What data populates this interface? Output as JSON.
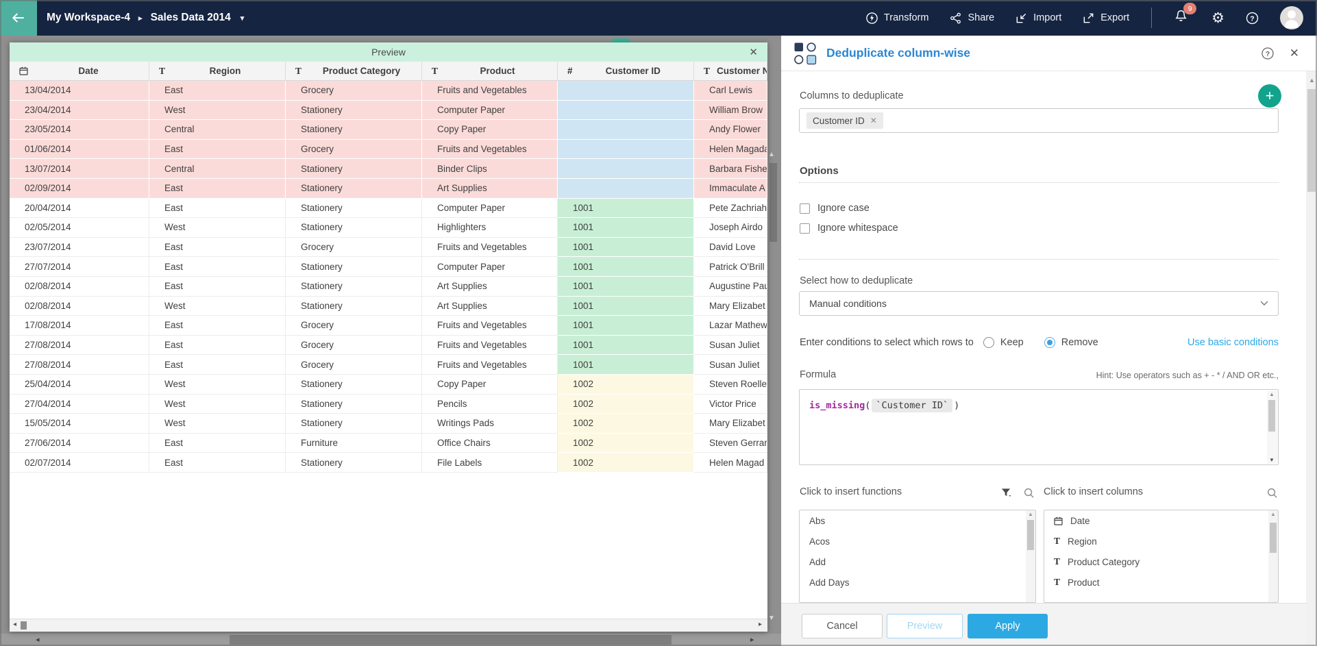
{
  "theme": {
    "navy": "#152440",
    "teal": "#4FB0A0",
    "mint": "#CBF1DE",
    "pink": "#FBDBD9",
    "blue": "#CFE5F3",
    "green": "#C8EFD5",
    "yellow": "#FCF8E2",
    "accent": "#2C86D3",
    "link": "#2BA7E8",
    "apply": "#2CA9E2",
    "plus": "#12A38C",
    "backdrop": "#8F8F8F"
  },
  "navbar": {
    "workspace": "My Workspace-4",
    "dataset": "Sales Data 2014",
    "actions": [
      {
        "label": "Transform"
      },
      {
        "label": "Share"
      },
      {
        "label": "Import"
      },
      {
        "label": "Export"
      }
    ],
    "notification_count": "9"
  },
  "preview": {
    "title": "Preview",
    "columns": [
      {
        "icon": "calendar",
        "label": "Date"
      },
      {
        "icon": "text",
        "label": "Region"
      },
      {
        "icon": "text",
        "label": "Product Category"
      },
      {
        "icon": "text",
        "label": "Product"
      },
      {
        "icon": "number",
        "label": "Customer ID"
      },
      {
        "icon": "text",
        "label": "Customer Name"
      }
    ],
    "rows": [
      {
        "state": "dup",
        "date": "13/04/2014",
        "region": "East",
        "category": "Grocery",
        "product": "Fruits and Vegetables",
        "customer_id": "",
        "customer_name": "Carl Lewis"
      },
      {
        "state": "dup",
        "date": "23/04/2014",
        "region": "West",
        "category": "Stationery",
        "product": "Computer Paper",
        "customer_id": "",
        "customer_name": "William Brow"
      },
      {
        "state": "dup",
        "date": "23/05/2014",
        "region": "Central",
        "category": "Stationery",
        "product": "Copy Paper",
        "customer_id": "",
        "customer_name": "Andy Flower"
      },
      {
        "state": "dup",
        "date": "01/06/2014",
        "region": "East",
        "category": "Grocery",
        "product": "Fruits and Vegetables",
        "customer_id": "",
        "customer_name": "Helen Magada"
      },
      {
        "state": "dup",
        "date": "13/07/2014",
        "region": "Central",
        "category": "Stationery",
        "product": "Binder Clips",
        "customer_id": "",
        "customer_name": "Barbara Fishe"
      },
      {
        "state": "dup",
        "date": "02/09/2014",
        "region": "East",
        "category": "Stationery",
        "product": "Art Supplies",
        "customer_id": "",
        "customer_name": "Immaculate A"
      },
      {
        "state": "k1001",
        "date": "20/04/2014",
        "region": "East",
        "category": "Stationery",
        "product": "Computer Paper",
        "customer_id": "1001",
        "customer_name": "Pete Zachriah"
      },
      {
        "state": "k1001",
        "date": "02/05/2014",
        "region": "West",
        "category": "Stationery",
        "product": "Highlighters",
        "customer_id": "1001",
        "customer_name": "Joseph Airdo"
      },
      {
        "state": "k1001",
        "date": "23/07/2014",
        "region": "East",
        "category": "Grocery",
        "product": "Fruits and Vegetables",
        "customer_id": "1001",
        "customer_name": "David Love"
      },
      {
        "state": "k1001",
        "date": "27/07/2014",
        "region": "East",
        "category": "Stationery",
        "product": "Computer Paper",
        "customer_id": "1001",
        "customer_name": "Patrick O'Brill"
      },
      {
        "state": "k1001",
        "date": "02/08/2014",
        "region": "East",
        "category": "Stationery",
        "product": "Art Supplies",
        "customer_id": "1001",
        "customer_name": "Augustine Pau"
      },
      {
        "state": "k1001",
        "date": "02/08/2014",
        "region": "West",
        "category": "Stationery",
        "product": "Art Supplies",
        "customer_id": "1001",
        "customer_name": "Mary Elizabet"
      },
      {
        "state": "k1001",
        "date": "17/08/2014",
        "region": "East",
        "category": "Grocery",
        "product": "Fruits and Vegetables",
        "customer_id": "1001",
        "customer_name": "Lazar Mathew"
      },
      {
        "state": "k1001",
        "date": "27/08/2014",
        "region": "East",
        "category": "Grocery",
        "product": "Fruits and Vegetables",
        "customer_id": "1001",
        "customer_name": "Susan Juliet"
      },
      {
        "state": "k1001",
        "date": "27/08/2014",
        "region": "East",
        "category": "Grocery",
        "product": "Fruits and Vegetables",
        "customer_id": "1001",
        "customer_name": "Susan Juliet"
      },
      {
        "state": "k1002",
        "date": "25/04/2014",
        "region": "West",
        "category": "Stationery",
        "product": "Copy Paper",
        "customer_id": "1002",
        "customer_name": "Steven Roelle"
      },
      {
        "state": "k1002",
        "date": "27/04/2014",
        "region": "West",
        "category": "Stationery",
        "product": "Pencils",
        "customer_id": "1002",
        "customer_name": "Victor Price"
      },
      {
        "state": "k1002",
        "date": "15/05/2014",
        "region": "West",
        "category": "Stationery",
        "product": "Writings Pads",
        "customer_id": "1002",
        "customer_name": "Mary Elizabet"
      },
      {
        "state": "k1002",
        "date": "27/06/2014",
        "region": "East",
        "category": "Furniture",
        "product": "Office Chairs",
        "customer_id": "1002",
        "customer_name": "Steven Gerrar"
      },
      {
        "state": "k1002",
        "date": "02/07/2014",
        "region": "East",
        "category": "Stationery",
        "product": "File Labels",
        "customer_id": "1002",
        "customer_name": "Helen Magad"
      }
    ]
  },
  "panel": {
    "title": "Deduplicate column-wise",
    "columns_label": "Columns to deduplicate",
    "chip": "Customer ID",
    "options_label": "Options",
    "checkboxes": [
      {
        "label": "Ignore case"
      },
      {
        "label": "Ignore whitespace"
      }
    ],
    "how_label": "Select how to deduplicate",
    "dropdown_value": "Manual conditions",
    "conditions_label": "Enter conditions to select which rows to",
    "radio_keep": "Keep",
    "radio_remove": "Remove",
    "basic_link": "Use basic conditions",
    "formula_label": "Formula",
    "hint": "Hint: Use operators such as + - * / AND OR etc.,",
    "formula": {
      "fn": "is_missing",
      "open": "(",
      "arg": "`Customer ID`",
      "close": ")"
    },
    "functions_label": "Click to insert functions",
    "insert_columns_label": "Click to insert columns",
    "functions": [
      {
        "label": "Abs"
      },
      {
        "label": "Acos"
      },
      {
        "label": "Add"
      },
      {
        "label": "Add Days"
      }
    ],
    "insert_columns": [
      {
        "icon": "calendar",
        "label": "Date"
      },
      {
        "icon": "text",
        "label": "Region"
      },
      {
        "icon": "text",
        "label": "Product Category"
      },
      {
        "icon": "text",
        "label": "Product"
      }
    ],
    "buttons": {
      "cancel": "Cancel",
      "preview": "Preview",
      "apply": "Apply"
    }
  }
}
